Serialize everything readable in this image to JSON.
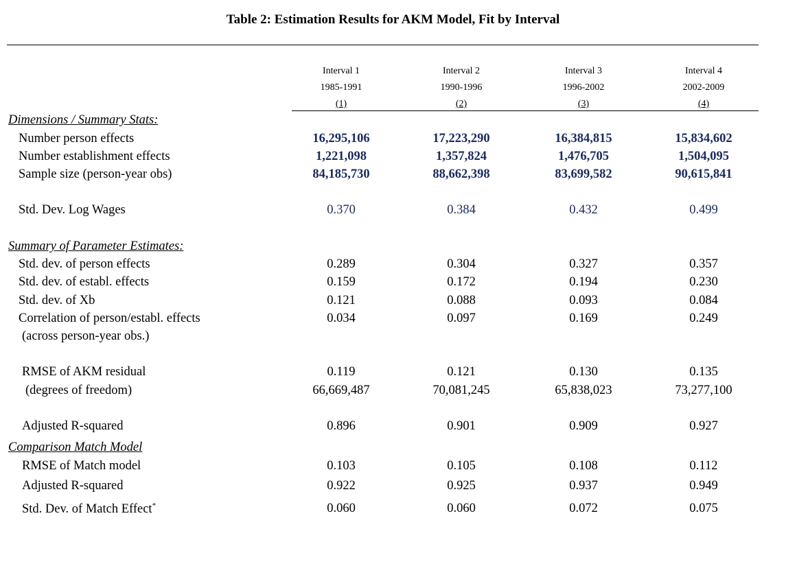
{
  "title": "Table 2: Estimation Results for AKM Model, Fit by Interval",
  "columns": [
    {
      "name": "Interval 1",
      "years": "1985-1991",
      "num": "(1)"
    },
    {
      "name": "Interval 2",
      "years": "1990-1996",
      "num": "(2)"
    },
    {
      "name": "Interval 3",
      "years": "1996-2002",
      "num": "(3)"
    },
    {
      "name": "Interval 4",
      "years": "2002-2009",
      "num": "(4)"
    }
  ],
  "sections": {
    "dimensions": "Dimensions / Summary Stats:",
    "parameters": "Summary of Parameter Estimates:",
    "comparison": "Comparison Match Model"
  },
  "rows": [
    {
      "label": "Number person effects",
      "values": [
        "16,295,106",
        "17,223,290",
        "16,384,815",
        "15,834,602"
      ]
    },
    {
      "label": "Number establishment effects",
      "values": [
        "1,221,098",
        "1,357,824",
        "1,476,705",
        "1,504,095"
      ]
    },
    {
      "label": "Sample size (person-year obs)",
      "values": [
        "84,185,730",
        "88,662,398",
        "83,699,582",
        "90,615,841"
      ]
    },
    {
      "label": "Std. Dev. Log Wages",
      "values": [
        "0.370",
        "0.384",
        "0.432",
        "0.499"
      ]
    },
    {
      "label": "Std. dev. of person effects",
      "values": [
        "0.289",
        "0.304",
        "0.327",
        "0.357"
      ]
    },
    {
      "label": "Std. dev. of establ. effects",
      "values": [
        "0.159",
        "0.172",
        "0.194",
        "0.230"
      ]
    },
    {
      "label": "Std. dev. of Xb",
      "values": [
        "0.121",
        "0.088",
        "0.093",
        "0.084"
      ]
    },
    {
      "label": "Correlation of person/establ. effects",
      "values": [
        "0.034",
        "0.097",
        "0.169",
        "0.249"
      ]
    },
    {
      "label": "(across person-year obs.)",
      "values": [
        "",
        "",
        "",
        ""
      ]
    },
    {
      "label": "RMSE of AKM residual",
      "values": [
        "0.119",
        "0.121",
        "0.130",
        "0.135"
      ]
    },
    {
      "label": "(degrees of freedom)",
      "values": [
        "66,669,487",
        "70,081,245",
        "65,838,023",
        "73,277,100"
      ]
    },
    {
      "label": "Adjusted R-squared",
      "values": [
        "0.896",
        "0.901",
        "0.909",
        "0.927"
      ]
    },
    {
      "label": "RMSE of Match model",
      "values": [
        "0.103",
        "0.105",
        "0.108",
        "0.112"
      ]
    },
    {
      "label": "Adjusted R-squared",
      "values": [
        "0.922",
        "0.925",
        "0.937",
        "0.949"
      ]
    },
    {
      "label": "Std. Dev. of Match Effect",
      "values": [
        "0.060",
        "0.060",
        "0.072",
        "0.075"
      ]
    }
  ],
  "footnote_mark": "*"
}
